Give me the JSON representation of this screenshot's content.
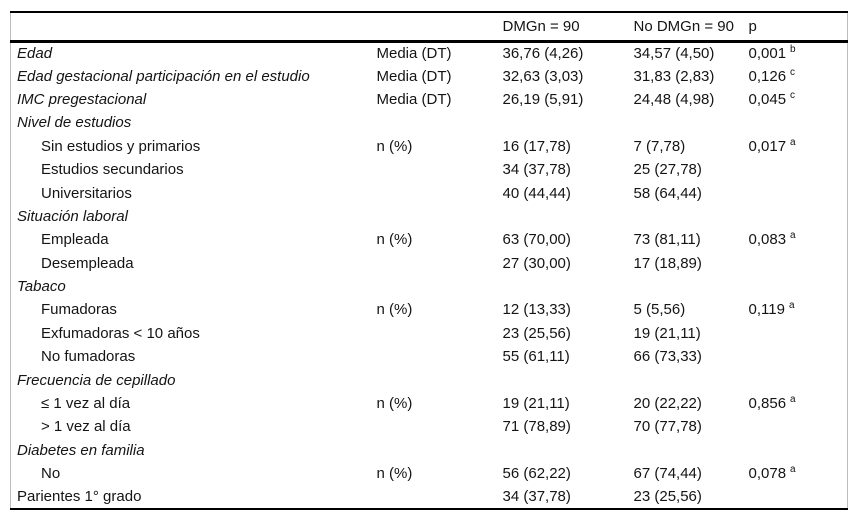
{
  "table": {
    "columns": [
      "",
      "",
      "DMGn = 90",
      "No DMGn = 90",
      "p"
    ],
    "rows": [
      {
        "label": "Edad",
        "italic": true,
        "indent": false,
        "stat": "Media (DT)",
        "dmg": "36,76 (4,26)",
        "no_dmg": "34,57 (4,50)",
        "p": "0,001",
        "p_sup": "b"
      },
      {
        "label": "Edad gestacional participación en el estudio",
        "italic": true,
        "indent": false,
        "stat": "Media (DT)",
        "dmg": "32,63 (3,03)",
        "no_dmg": "31,83 (2,83)",
        "p": "0,126",
        "p_sup": "c"
      },
      {
        "label": "IMC pregestacional",
        "italic": true,
        "indent": false,
        "stat": "Media (DT)",
        "dmg": "26,19 (5,91)",
        "no_dmg": "24,48 (4,98)",
        "p": "0,045",
        "p_sup": "c"
      },
      {
        "label": "Nivel de estudios",
        "italic": true,
        "indent": false,
        "stat": "",
        "dmg": "",
        "no_dmg": "",
        "p": "",
        "p_sup": ""
      },
      {
        "label": "Sin estudios y primarios",
        "italic": false,
        "indent": true,
        "stat": "n (%)",
        "dmg": "16 (17,78)",
        "no_dmg": "7 (7,78)",
        "p": "0,017",
        "p_sup": "a"
      },
      {
        "label": "Estudios secundarios",
        "italic": false,
        "indent": true,
        "stat": "",
        "dmg": "34 (37,78)",
        "no_dmg": "25 (27,78)",
        "p": "",
        "p_sup": ""
      },
      {
        "label": "Universitarios",
        "italic": false,
        "indent": true,
        "stat": "",
        "dmg": "40 (44,44)",
        "no_dmg": "58 (64,44)",
        "p": "",
        "p_sup": ""
      },
      {
        "label": "Situación laboral",
        "italic": true,
        "indent": false,
        "stat": "",
        "dmg": "",
        "no_dmg": "",
        "p": "",
        "p_sup": ""
      },
      {
        "label": "Empleada",
        "italic": false,
        "indent": true,
        "stat": "n (%)",
        "dmg": "63 (70,00)",
        "no_dmg": "73 (81,11)",
        "p": "0,083",
        "p_sup": "a"
      },
      {
        "label": "Desempleada",
        "italic": false,
        "indent": true,
        "stat": "",
        "dmg": "27 (30,00)",
        "no_dmg": "17 (18,89)",
        "p": "",
        "p_sup": ""
      },
      {
        "label": "Tabaco",
        "italic": true,
        "indent": false,
        "stat": "",
        "dmg": "",
        "no_dmg": "",
        "p": "",
        "p_sup": ""
      },
      {
        "label": "Fumadoras",
        "italic": false,
        "indent": true,
        "stat": "n (%)",
        "dmg": "12 (13,33)",
        "no_dmg": "5 (5,56)",
        "p": "0,119",
        "p_sup": "a"
      },
      {
        "label": "Exfumadoras < 10 años",
        "italic": false,
        "indent": true,
        "stat": "",
        "dmg": "23 (25,56)",
        "no_dmg": "19 (21,11)",
        "p": "",
        "p_sup": ""
      },
      {
        "label": "No fumadoras",
        "italic": false,
        "indent": true,
        "stat": "",
        "dmg": "55 (61,11)",
        "no_dmg": "66 (73,33)",
        "p": "",
        "p_sup": ""
      },
      {
        "label": "Frecuencia de cepillado",
        "italic": true,
        "indent": false,
        "stat": "",
        "dmg": "",
        "no_dmg": "",
        "p": "",
        "p_sup": ""
      },
      {
        "label": "≤ 1 vez al día",
        "italic": false,
        "indent": true,
        "stat": "n (%)",
        "dmg": "19 (21,11)",
        "no_dmg": "20 (22,22)",
        "p": "0,856",
        "p_sup": "a"
      },
      {
        "label": "> 1 vez al día",
        "italic": false,
        "indent": true,
        "stat": "",
        "dmg": "71 (78,89)",
        "no_dmg": "70 (77,78)",
        "p": "",
        "p_sup": ""
      },
      {
        "label": "Diabetes en familia",
        "italic": true,
        "indent": false,
        "stat": "",
        "dmg": "",
        "no_dmg": "",
        "p": "",
        "p_sup": ""
      },
      {
        "label": "No",
        "italic": false,
        "indent": true,
        "stat": "n (%)",
        "dmg": "56 (62,22)",
        "no_dmg": "67 (74,44)",
        "p": "0,078",
        "p_sup": "a"
      },
      {
        "label": "Parientes 1° grado",
        "italic": false,
        "indent": false,
        "stat": "",
        "dmg": "34 (37,78)",
        "no_dmg": "23 (25,56)",
        "p": "",
        "p_sup": ""
      }
    ]
  }
}
